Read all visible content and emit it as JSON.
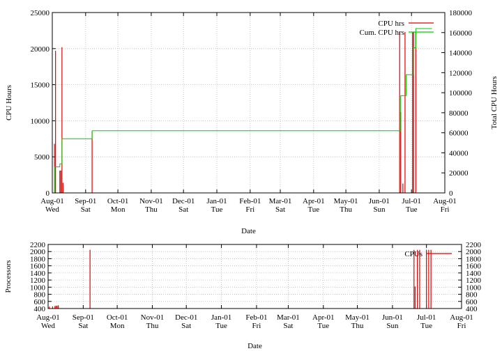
{
  "chart_data": [
    {
      "type": "line",
      "xlabel": "Date",
      "ylabel": "CPU Hours",
      "y2label": "Total CPU Hours",
      "ylim": [
        0,
        25000
      ],
      "y2lim": [
        0,
        180000
      ],
      "yticks": [
        "0",
        "5000",
        "10000",
        "15000",
        "20000",
        "25000"
      ],
      "y2ticks": [
        "0",
        "20000",
        "40000",
        "60000",
        "80000",
        "100000",
        "120000",
        "140000",
        "160000",
        "180000"
      ],
      "x_range": [
        "2001-08-01",
        "2002-08-01"
      ],
      "x_ticks": [
        {
          "date": "2001-08-01",
          "label": "Aug-01",
          "day": "Wed"
        },
        {
          "date": "2001-09-01",
          "label": "Sep-01",
          "day": "Sat"
        },
        {
          "date": "2001-10-01",
          "label": "Oct-01",
          "day": "Mon"
        },
        {
          "date": "2001-11-01",
          "label": "Nov-01",
          "day": "Thu"
        },
        {
          "date": "2001-12-01",
          "label": "Dec-01",
          "day": "Sat"
        },
        {
          "date": "2002-01-01",
          "label": "Jan-01",
          "day": "Tue"
        },
        {
          "date": "2002-02-01",
          "label": "Feb-01",
          "day": "Fri"
        },
        {
          "date": "2002-03-01",
          "label": "Mar-01",
          "day": "Sat"
        },
        {
          "date": "2002-04-01",
          "label": "Apr-01",
          "day": "Tue"
        },
        {
          "date": "2002-05-01",
          "label": "May-01",
          "day": "Thu"
        },
        {
          "date": "2002-06-01",
          "label": "Jun-01",
          "day": "Sun"
        },
        {
          "date": "2002-07-01",
          "label": "Jul-01",
          "day": "Tue"
        },
        {
          "date": "2002-08-01",
          "label": "Aug-01",
          "day": "Fri"
        }
      ],
      "grid": true,
      "legend_position": "top-right",
      "series": [
        {
          "name": "CPU hrs",
          "axis": "left",
          "color": "#e00000",
          "style": "impulses",
          "points": [
            [
              "2001-08-03",
              6800
            ],
            [
              "2001-08-04",
              19700
            ],
            [
              "2001-08-08",
              3100
            ],
            [
              "2001-08-09",
              3100
            ],
            [
              "2001-08-10",
              20200
            ],
            [
              "2001-08-11",
              1400
            ],
            [
              "2001-09-07",
              8500
            ],
            [
              "2002-06-20",
              22300
            ],
            [
              "2002-06-21",
              11200
            ],
            [
              "2002-06-23",
              1300
            ],
            [
              "2002-06-25",
              22300
            ],
            [
              "2002-07-02",
              22300
            ],
            [
              "2002-07-03",
              22300
            ],
            [
              "2002-07-05",
              22300
            ]
          ]
        },
        {
          "name": "Cum. CPU hrs",
          "axis": "right",
          "color": "#00cc00",
          "style": "steps",
          "points": [
            [
              "2001-08-01",
              0
            ],
            [
              "2001-08-03",
              26000
            ],
            [
              "2001-08-08",
              29000
            ],
            [
              "2001-08-10",
              54000
            ],
            [
              "2001-09-07",
              62000
            ],
            [
              "2002-06-20",
              62000
            ],
            [
              "2002-06-21",
              97000
            ],
            [
              "2002-06-25",
              97000
            ],
            [
              "2002-06-26",
              118000
            ],
            [
              "2002-07-02",
              118000
            ],
            [
              "2002-07-03",
              145000
            ],
            [
              "2002-07-05",
              164000
            ],
            [
              "2002-07-20",
              164000
            ]
          ]
        }
      ]
    },
    {
      "type": "line",
      "xlabel": "Date",
      "ylabel": "Processors",
      "ylim": [
        400,
        2200
      ],
      "yticks": [
        "400",
        "600",
        "800",
        "1000",
        "1200",
        "1400",
        "1600",
        "1800",
        "2000",
        "2200"
      ],
      "y2ticks": [
        "400",
        "600",
        "800",
        "1000",
        "1200",
        "1400",
        "1600",
        "1800",
        "2000",
        "2200"
      ],
      "x_range": [
        "2001-08-01",
        "2002-08-01"
      ],
      "grid": true,
      "legend_position": "top-right",
      "series": [
        {
          "name": "CPUs",
          "color": "#e00000",
          "style": "impulses",
          "points": [
            [
              "2001-08-02",
              450
            ],
            [
              "2001-08-05",
              460
            ],
            [
              "2001-08-07",
              470
            ],
            [
              "2001-08-08",
              480
            ],
            [
              "2001-08-09",
              480
            ],
            [
              "2001-08-10",
              490
            ],
            [
              "2001-09-07",
              2048
            ],
            [
              "2002-06-20",
              2048
            ],
            [
              "2002-06-21",
              1020
            ],
            [
              "2002-06-23",
              2048
            ],
            [
              "2002-06-25",
              2048
            ],
            [
              "2002-07-01",
              2048
            ],
            [
              "2002-07-03",
              2048
            ],
            [
              "2002-07-05",
              2048
            ]
          ],
          "legend_marker_level": 1980
        }
      ]
    }
  ],
  "colors": {
    "cpu": "#e00000",
    "cumulative": "#00cc00",
    "grid": "#b8b8b8"
  }
}
